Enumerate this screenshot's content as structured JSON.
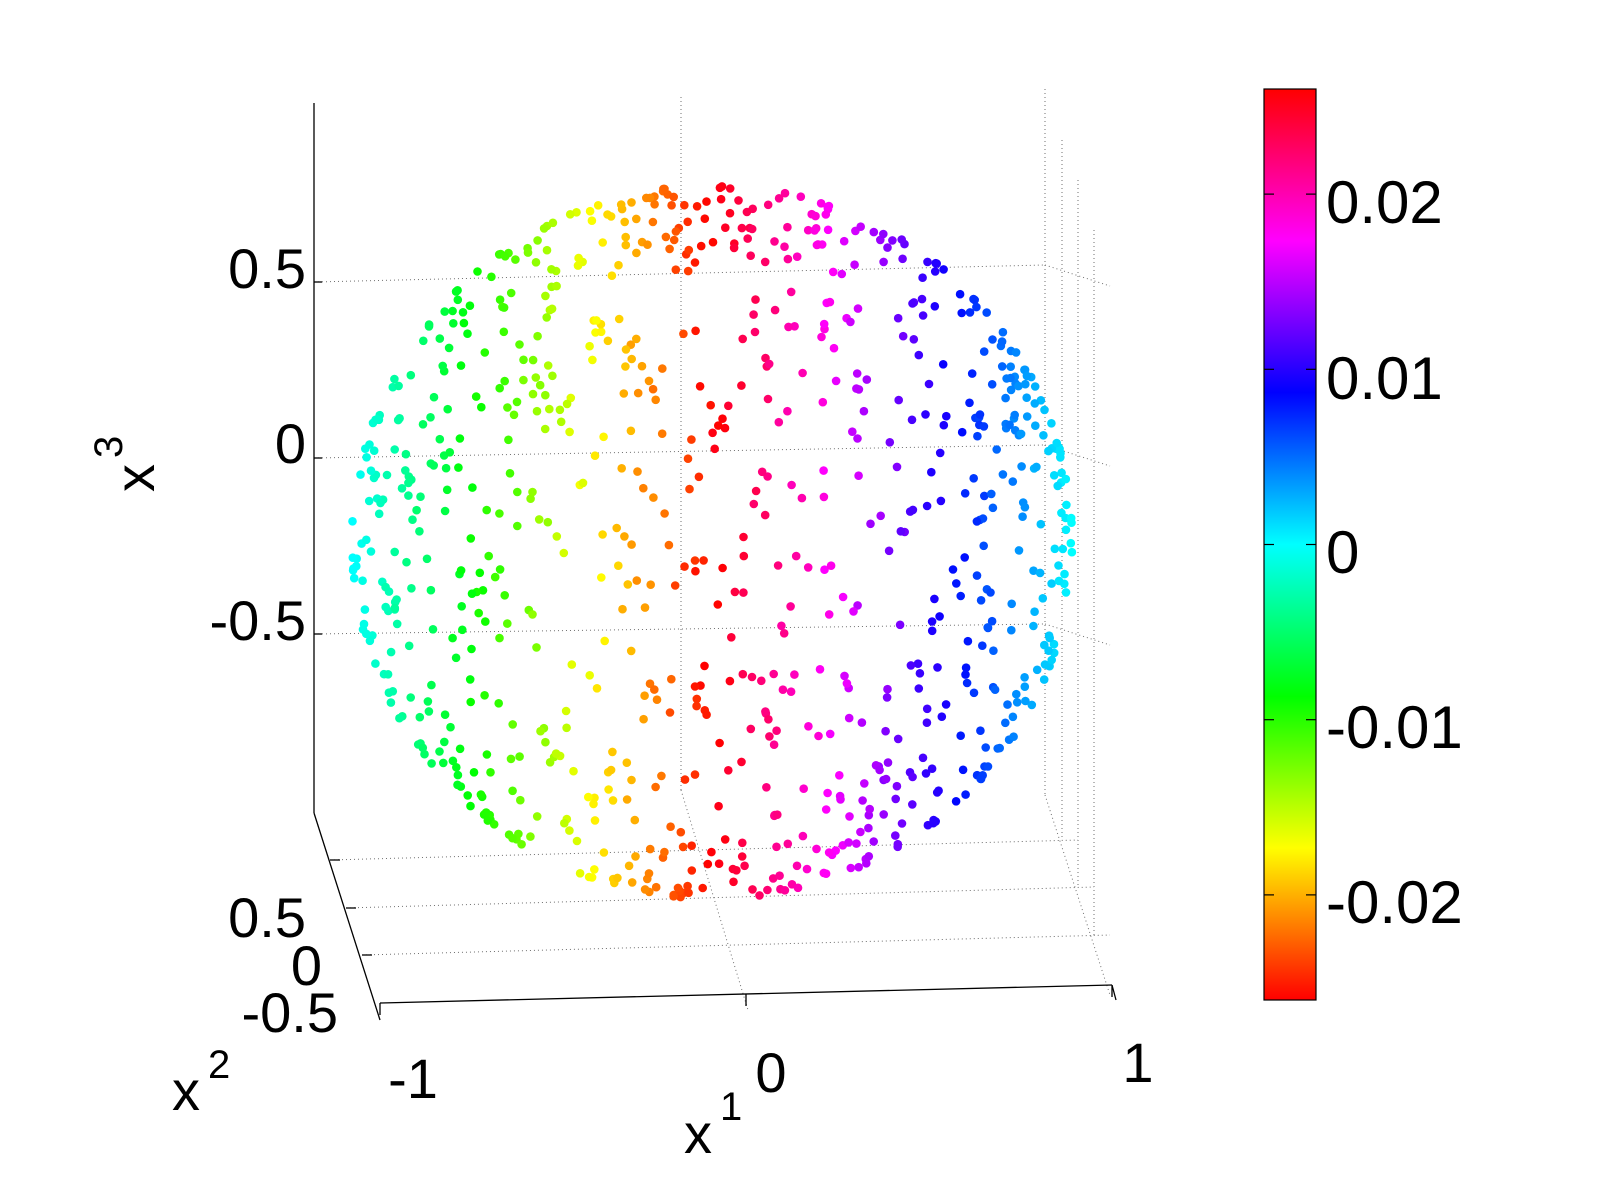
{
  "chart_data": {
    "type": "scatter",
    "projection": "3d",
    "description_shape": "points on the surface of the unit sphere, colored by value",
    "x_axis": {
      "label": "x",
      "label_superscript": "1",
      "ticks": [
        -1,
        0,
        1
      ],
      "tick_labels": [
        "-1",
        "0",
        "1"
      ],
      "range": [
        -1,
        1
      ]
    },
    "y_axis": {
      "label": "x",
      "label_superscript": "2",
      "ticks": [
        -0.5,
        0,
        0.5
      ],
      "tick_labels": [
        "-0.5",
        "0",
        "0.5"
      ],
      "range": [
        -1,
        1
      ]
    },
    "z_axis": {
      "label": "x",
      "label_superscript": "3",
      "ticks": [
        -0.5,
        0,
        0.5
      ],
      "tick_labels": [
        "-0.5",
        "0",
        "0.5"
      ],
      "range": [
        -1,
        1
      ]
    },
    "grid": true,
    "point_count": 900,
    "colormap": "hsv",
    "color_range": [
      -0.026,
      0.026
    ],
    "colorbar": {
      "location": "right",
      "ticks": [
        -0.02,
        -0.01,
        0,
        0.01,
        0.02
      ],
      "tick_labels": [
        "-0.02",
        "-0.01",
        "0",
        "0.01",
        "0.02"
      ]
    }
  }
}
